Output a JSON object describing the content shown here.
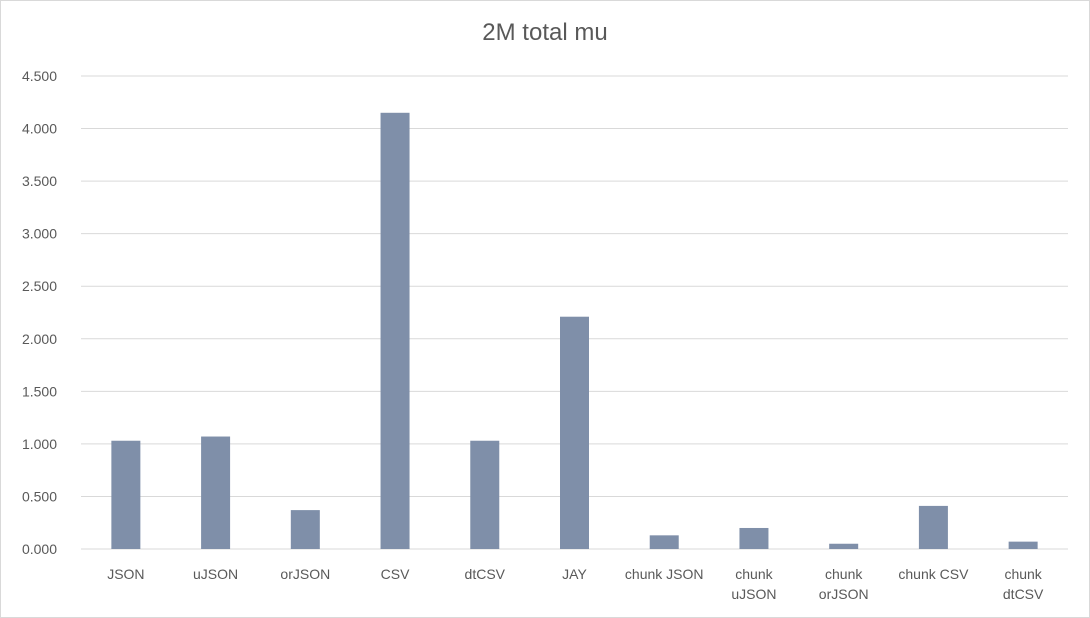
{
  "chart_data": {
    "type": "bar",
    "title": "2M total mu",
    "xlabel": "",
    "ylabel": "",
    "categories": [
      "JSON",
      "uJSON",
      "orJSON",
      "CSV",
      "dtCSV",
      "JAY",
      "chunk JSON",
      "chunk uJSON",
      "chunk orJSON",
      "chunk CSV",
      "chunk dtCSV"
    ],
    "category_lines": [
      [
        "JSON"
      ],
      [
        "uJSON"
      ],
      [
        "orJSON"
      ],
      [
        "CSV"
      ],
      [
        "dtCSV"
      ],
      [
        "JAY"
      ],
      [
        "chunk JSON"
      ],
      [
        "chunk",
        "uJSON"
      ],
      [
        "chunk",
        "orJSON"
      ],
      [
        "chunk CSV"
      ],
      [
        "chunk",
        "dtCSV"
      ]
    ],
    "values": [
      1.03,
      1.07,
      0.37,
      4.15,
      1.03,
      2.21,
      0.13,
      0.2,
      0.05,
      0.41,
      0.07
    ],
    "ylim": [
      0,
      4.5
    ],
    "yticks": [
      0,
      0.5,
      1.0,
      1.5,
      2.0,
      2.5,
      3.0,
      3.5,
      4.0,
      4.5
    ],
    "ytick_labels": [
      "0.000",
      "0.500",
      "1.000",
      "1.500",
      "2.000",
      "2.500",
      "3.000",
      "3.500",
      "4.000",
      "4.500"
    ],
    "grid": true,
    "legend": "none",
    "colors": {
      "bar": "#7f8fa9",
      "grid": "#d9d9d9",
      "text": "#595959"
    }
  }
}
